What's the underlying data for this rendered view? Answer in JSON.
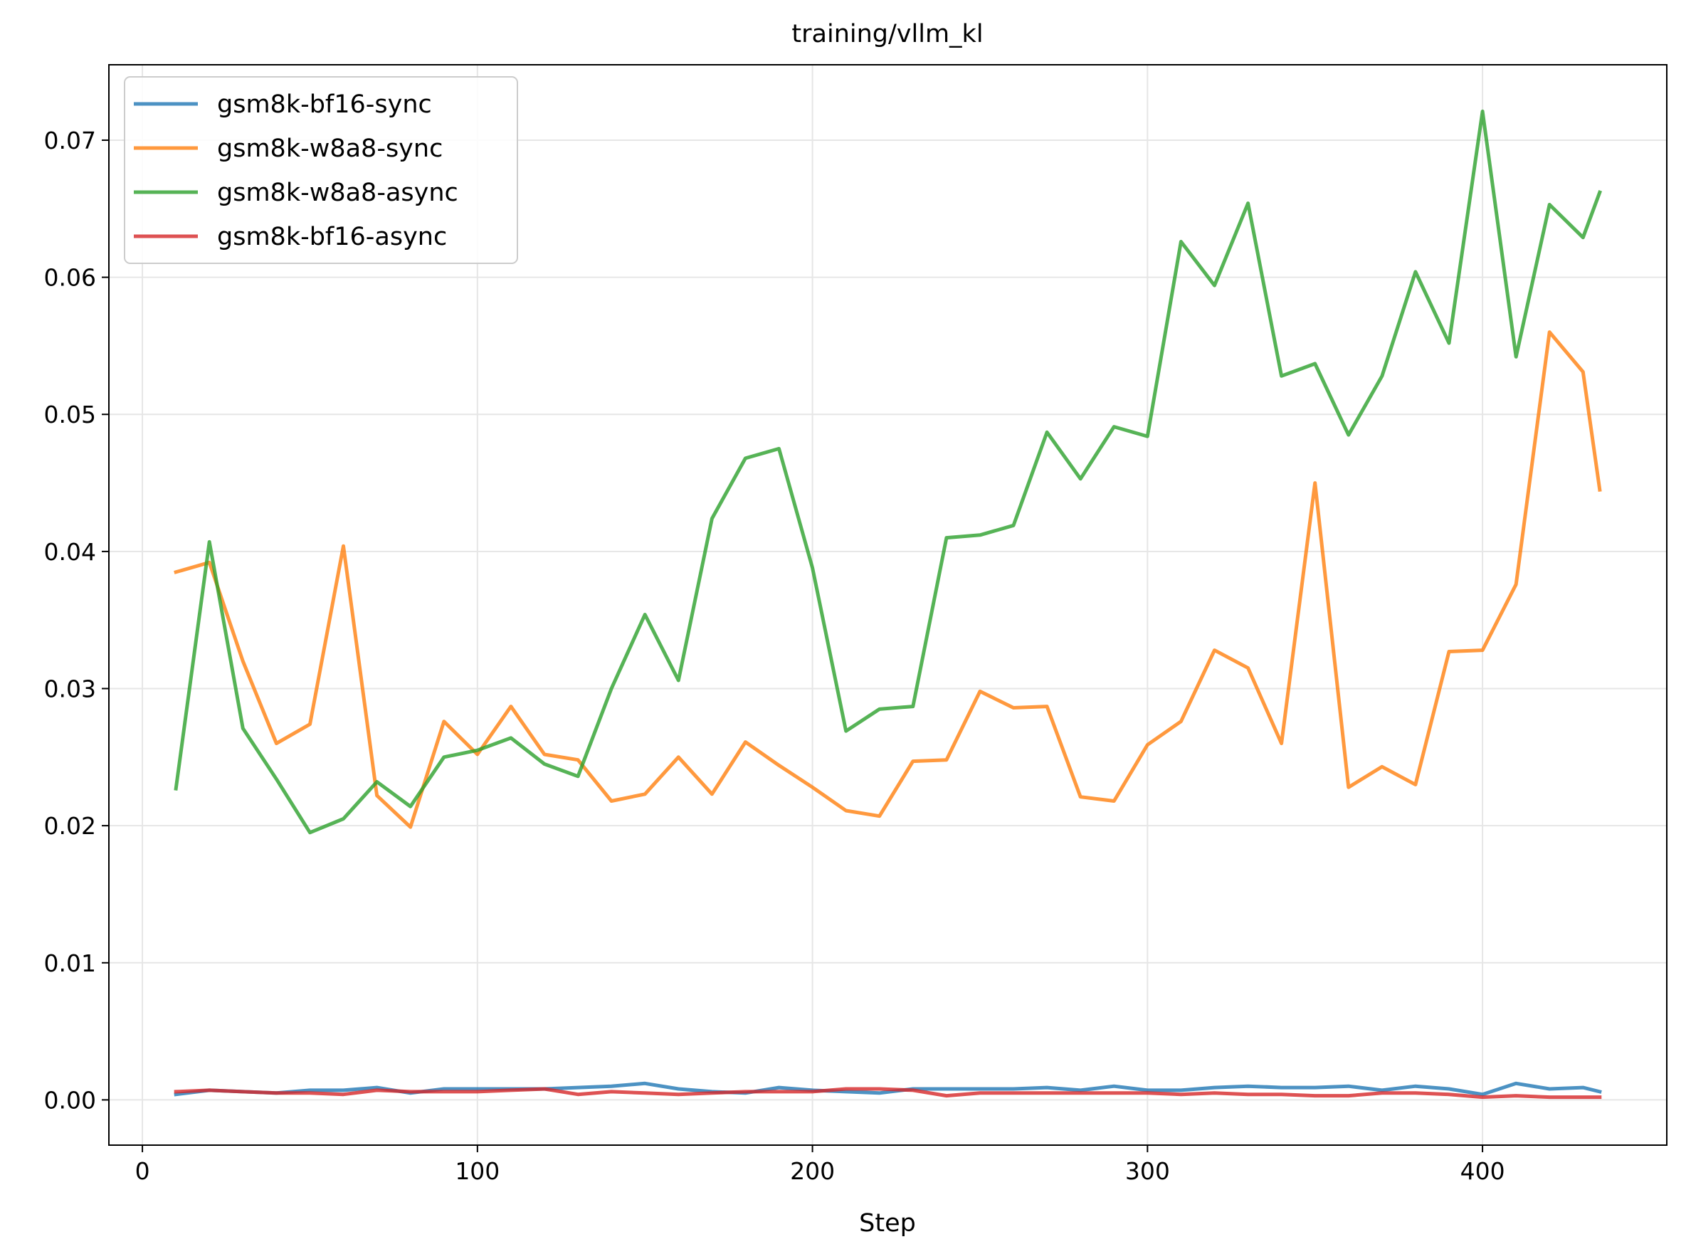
{
  "chart_data": {
    "type": "line",
    "title": "training/vllm_kl",
    "xlabel": "Step",
    "ylabel": "",
    "xlim": [
      -10,
      455
    ],
    "ylim": [
      -0.0033,
      0.0755
    ],
    "xticks": [
      0,
      100,
      200,
      300,
      400
    ],
    "yticks": [
      0.0,
      0.01,
      0.02,
      0.03,
      0.04,
      0.05,
      0.06,
      0.07
    ],
    "xtick_labels": [
      "0",
      "100",
      "200",
      "300",
      "400"
    ],
    "ytick_labels": [
      "0.00",
      "0.01",
      "0.02",
      "0.03",
      "0.04",
      "0.05",
      "0.06",
      "0.07"
    ],
    "grid": true,
    "legend_position": "top-left",
    "x": [
      10,
      20,
      30,
      40,
      50,
      60,
      70,
      80,
      90,
      100,
      110,
      120,
      130,
      140,
      150,
      160,
      170,
      180,
      190,
      200,
      210,
      220,
      230,
      240,
      250,
      260,
      270,
      280,
      290,
      300,
      310,
      320,
      330,
      340,
      350,
      360,
      370,
      380,
      390,
      400,
      410,
      420,
      430,
      435
    ],
    "series": [
      {
        "name": "gsm8k-bf16-sync",
        "color": "#1f77b4",
        "values": [
          0.0004,
          0.0007,
          0.0006,
          0.0005,
          0.0007,
          0.0007,
          0.0009,
          0.0005,
          0.0008,
          0.0008,
          0.0008,
          0.0008,
          0.0009,
          0.001,
          0.0012,
          0.0008,
          0.0006,
          0.0005,
          0.0009,
          0.0007,
          0.0006,
          0.0005,
          0.0008,
          0.0008,
          0.0008,
          0.0008,
          0.0009,
          0.0007,
          0.001,
          0.0007,
          0.0007,
          0.0009,
          0.001,
          0.0009,
          0.0009,
          0.001,
          0.0007,
          0.001,
          0.0008,
          0.0004,
          0.0012,
          0.0008,
          0.0009,
          0.0006
        ]
      },
      {
        "name": "gsm8k-w8a8-sync",
        "color": "#ff7f0e",
        "values": [
          0.0385,
          0.0392,
          0.032,
          0.026,
          0.0274,
          0.0404,
          0.0222,
          0.0199,
          0.0276,
          0.0252,
          0.0287,
          0.0252,
          0.0248,
          0.0218,
          0.0223,
          0.025,
          0.0223,
          0.0261,
          0.0244,
          0.0228,
          0.0211,
          0.0207,
          0.0247,
          0.0248,
          0.0298,
          0.0286,
          0.0287,
          0.0221,
          0.0218,
          0.0259,
          0.0276,
          0.0328,
          0.0315,
          0.026,
          0.045,
          0.0228,
          0.0243,
          0.023,
          0.0327,
          0.0328,
          0.0376,
          0.056,
          0.0531,
          0.0445
        ]
      },
      {
        "name": "gsm8k-w8a8-async",
        "color": "#2ca02c",
        "values": [
          0.0227,
          0.0407,
          0.0271,
          0.0234,
          0.0195,
          0.0205,
          0.0232,
          0.0214,
          0.025,
          0.0255,
          0.0264,
          0.0245,
          0.0236,
          0.03,
          0.0354,
          0.0306,
          0.0424,
          0.0468,
          0.0475,
          0.0388,
          0.0269,
          0.0285,
          0.0287,
          0.041,
          0.0412,
          0.0419,
          0.0487,
          0.0453,
          0.0491,
          0.0484,
          0.0626,
          0.0594,
          0.0654,
          0.0528,
          0.0537,
          0.0485,
          0.0528,
          0.0604,
          0.0552,
          0.0721,
          0.0542,
          0.0653,
          0.0629,
          0.0662
        ]
      },
      {
        "name": "gsm8k-bf16-async",
        "color": "#d62728",
        "values": [
          0.0006,
          0.0007,
          0.0006,
          0.0005,
          0.0005,
          0.0004,
          0.0007,
          0.0006,
          0.0006,
          0.0006,
          0.0007,
          0.0008,
          0.0004,
          0.0006,
          0.0005,
          0.0004,
          0.0005,
          0.0006,
          0.0006,
          0.0006,
          0.0008,
          0.0008,
          0.0007,
          0.0003,
          0.0005,
          0.0005,
          0.0005,
          0.0005,
          0.0005,
          0.0005,
          0.0004,
          0.0005,
          0.0004,
          0.0004,
          0.0003,
          0.0003,
          0.0005,
          0.0005,
          0.0004,
          0.0002,
          0.0003,
          0.0002,
          0.0002,
          0.0002
        ]
      }
    ]
  }
}
